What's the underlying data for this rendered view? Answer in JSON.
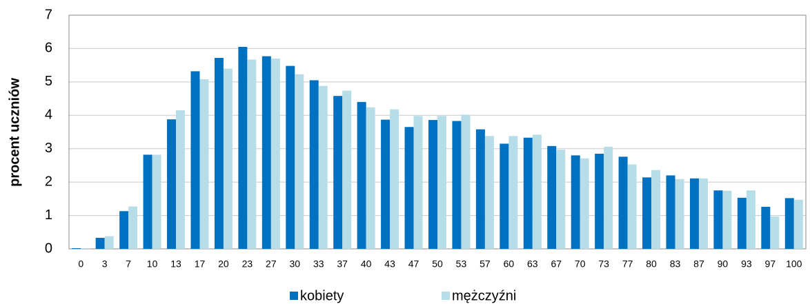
{
  "chart_data": {
    "type": "bar",
    "y_label": "procent uczniów",
    "categories": [
      "0",
      "3",
      "7",
      "10",
      "13",
      "17",
      "20",
      "23",
      "27",
      "30",
      "33",
      "37",
      "40",
      "43",
      "47",
      "50",
      "53",
      "57",
      "60",
      "63",
      "67",
      "70",
      "73",
      "77",
      "80",
      "83",
      "87",
      "90",
      "93",
      "97",
      "100"
    ],
    "series": [
      {
        "name": "kobiety",
        "color": "#0070c0",
        "values": [
          0.02,
          0.33,
          1.13,
          2.82,
          3.88,
          5.32,
          5.72,
          6.05,
          5.77,
          5.48,
          5.05,
          4.58,
          4.4,
          3.87,
          3.65,
          3.86,
          3.83,
          3.58,
          3.15,
          3.33,
          3.08,
          2.8,
          2.85,
          2.76,
          2.14,
          2.2,
          2.11,
          1.75,
          1.53,
          1.26,
          1.52
        ]
      },
      {
        "name": "mężczyźni",
        "color": "#b7dde8",
        "values": [
          0.02,
          0.38,
          1.27,
          2.82,
          4.15,
          5.08,
          5.4,
          5.67,
          5.7,
          5.23,
          4.88,
          4.74,
          4.24,
          4.18,
          3.98,
          3.98,
          4.02,
          3.38,
          3.38,
          3.42,
          2.97,
          2.71,
          3.06,
          2.53,
          2.36,
          2.09,
          2.11,
          1.74,
          1.75,
          0.97,
          1.47
        ]
      }
    ],
    "ylim": [
      0,
      7
    ],
    "yticks": [
      0,
      1,
      2,
      3,
      4,
      5,
      6,
      7
    ],
    "grid": true
  }
}
